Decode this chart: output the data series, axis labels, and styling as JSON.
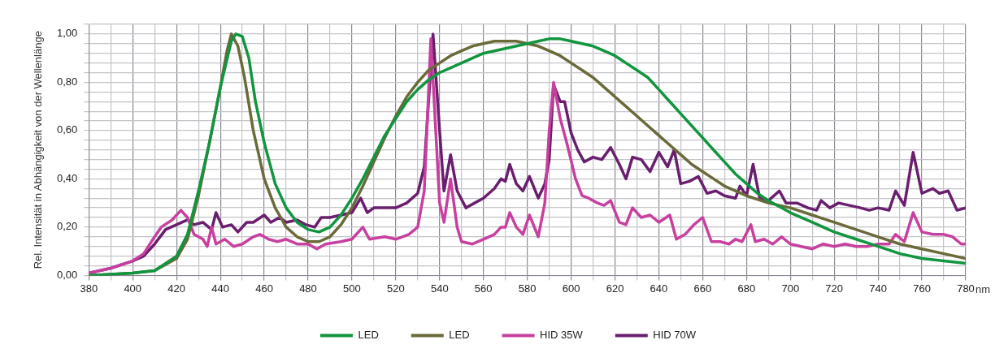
{
  "chart_data": {
    "type": "line",
    "ylabel": "Rel. Intensität in Abhängigkeit von der Wellenlänge",
    "xlabel": "nm",
    "xlim": [
      380,
      780
    ],
    "ylim": [
      0,
      1.04
    ],
    "xticks": [
      380,
      {
        "value": 390,
        "label": null
      },
      400,
      {
        "value": 410,
        "label": null
      },
      420,
      {
        "value": 430,
        "label": null
      },
      440,
      {
        "value": 450,
        "label": null
      },
      460,
      {
        "value": 470,
        "label": null
      },
      480,
      {
        "value": 490,
        "label": null
      },
      500,
      {
        "value": 510,
        "label": null
      },
      520,
      {
        "value": 530,
        "label": null
      },
      540,
      {
        "value": 550,
        "label": null
      },
      560,
      {
        "value": 570,
        "label": null
      },
      580,
      {
        "value": 590,
        "label": null
      },
      600,
      {
        "value": 610,
        "label": null
      },
      620,
      {
        "value": 630,
        "label": null
      },
      640,
      {
        "value": 650,
        "label": null
      },
      660,
      {
        "value": 670,
        "label": null
      },
      680,
      {
        "value": 690,
        "label": null
      },
      700,
      {
        "value": 710,
        "label": null
      },
      720,
      {
        "value": 730,
        "label": null
      },
      740,
      {
        "value": 750,
        "label": null
      },
      760,
      {
        "value": 770,
        "label": null
      },
      780
    ],
    "yticks": [
      {
        "value": 0,
        "label": "0,00"
      },
      {
        "value": 0.04,
        "label": null
      },
      {
        "value": 0.08,
        "label": null
      },
      {
        "value": 0.12,
        "label": null
      },
      {
        "value": 0.16,
        "label": null
      },
      {
        "value": 0.2,
        "label": "0,20"
      },
      {
        "value": 0.24,
        "label": null
      },
      {
        "value": 0.28,
        "label": null
      },
      {
        "value": 0.32,
        "label": null
      },
      {
        "value": 0.36,
        "label": null
      },
      {
        "value": 0.4,
        "label": "0,40"
      },
      {
        "value": 0.44,
        "label": null
      },
      {
        "value": 0.48,
        "label": null
      },
      {
        "value": 0.52,
        "label": null
      },
      {
        "value": 0.56,
        "label": null
      },
      {
        "value": 0.6,
        "label": "0,60"
      },
      {
        "value": 0.64,
        "label": null
      },
      {
        "value": 0.68,
        "label": null
      },
      {
        "value": 0.72,
        "label": null
      },
      {
        "value": 0.76,
        "label": null
      },
      {
        "value": 0.8,
        "label": "0,80"
      },
      {
        "value": 0.84,
        "label": null
      },
      {
        "value": 0.88,
        "label": null
      },
      {
        "value": 0.92,
        "label": null
      },
      {
        "value": 0.96,
        "label": null
      },
      {
        "value": 1,
        "label": "1,00"
      },
      {
        "value": 1.04,
        "label": null
      }
    ],
    "grid": true,
    "legend": "bottom",
    "marker": "none",
    "line_style": "solid",
    "series": [
      {
        "name": "LED",
        "color": "#12953f",
        "x": [
          380,
          400,
          410,
          420,
          425,
          430,
          435,
          440,
          445,
          447,
          450,
          453,
          456,
          460,
          465,
          470,
          475,
          480,
          485,
          490,
          495,
          500,
          505,
          510,
          515,
          520,
          525,
          530,
          535,
          540,
          545,
          550,
          555,
          560,
          565,
          570,
          575,
          580,
          585,
          590,
          595,
          600,
          605,
          610,
          615,
          620,
          625,
          630,
          635,
          640,
          645,
          650,
          655,
          660,
          665,
          670,
          675,
          680,
          685,
          690,
          700,
          710,
          720,
          730,
          740,
          750,
          760,
          770,
          780
        ],
        "values": [
          0.0,
          0.01,
          0.02,
          0.08,
          0.17,
          0.35,
          0.55,
          0.78,
          0.97,
          1.0,
          0.99,
          0.9,
          0.72,
          0.55,
          0.38,
          0.28,
          0.22,
          0.19,
          0.18,
          0.2,
          0.25,
          0.32,
          0.4,
          0.49,
          0.58,
          0.65,
          0.72,
          0.77,
          0.81,
          0.84,
          0.86,
          0.88,
          0.9,
          0.92,
          0.93,
          0.94,
          0.95,
          0.96,
          0.97,
          0.98,
          0.98,
          0.97,
          0.96,
          0.95,
          0.93,
          0.91,
          0.88,
          0.85,
          0.82,
          0.77,
          0.72,
          0.67,
          0.62,
          0.57,
          0.52,
          0.47,
          0.42,
          0.38,
          0.34,
          0.31,
          0.26,
          0.22,
          0.18,
          0.15,
          0.12,
          0.09,
          0.07,
          0.06,
          0.05
        ]
      },
      {
        "name": "LED",
        "color": "#6b6a3a",
        "x": [
          380,
          400,
          410,
          420,
          425,
          430,
          435,
          440,
          443,
          445,
          448,
          451,
          455,
          460,
          465,
          470,
          475,
          480,
          485,
          490,
          495,
          500,
          505,
          510,
          515,
          520,
          525,
          530,
          535,
          540,
          545,
          550,
          555,
          560,
          565,
          570,
          575,
          580,
          585,
          590,
          595,
          600,
          605,
          610,
          615,
          620,
          625,
          630,
          635,
          640,
          645,
          650,
          655,
          660,
          665,
          670,
          680,
          690,
          700,
          710,
          720,
          730,
          740,
          750,
          760,
          770,
          780
        ],
        "values": [
          0.0,
          0.01,
          0.02,
          0.07,
          0.15,
          0.33,
          0.55,
          0.78,
          0.93,
          1.0,
          0.95,
          0.82,
          0.6,
          0.4,
          0.28,
          0.2,
          0.16,
          0.14,
          0.14,
          0.16,
          0.21,
          0.28,
          0.37,
          0.47,
          0.57,
          0.66,
          0.74,
          0.8,
          0.85,
          0.88,
          0.91,
          0.93,
          0.95,
          0.96,
          0.97,
          0.97,
          0.97,
          0.96,
          0.95,
          0.93,
          0.91,
          0.88,
          0.85,
          0.82,
          0.78,
          0.74,
          0.7,
          0.66,
          0.62,
          0.58,
          0.54,
          0.5,
          0.46,
          0.43,
          0.4,
          0.37,
          0.33,
          0.3,
          0.28,
          0.25,
          0.22,
          0.19,
          0.16,
          0.13,
          0.11,
          0.09,
          0.07
        ]
      },
      {
        "name": "HID 35W",
        "color": "#c8409f",
        "x": [
          380,
          390,
          400,
          405,
          410,
          413,
          418,
          422,
          425,
          428,
          432,
          434,
          436,
          438,
          442,
          446,
          450,
          455,
          458,
          462,
          466,
          470,
          475,
          480,
          484,
          488,
          495,
          500,
          505,
          508,
          515,
          520,
          526,
          530,
          533,
          536,
          540,
          542,
          545,
          548,
          550,
          555,
          560,
          565,
          568,
          570,
          572,
          575,
          578,
          581,
          585,
          588,
          590,
          592,
          595,
          598,
          602,
          605,
          608,
          612,
          615,
          618,
          622,
          625,
          628,
          632,
          636,
          640,
          645,
          648,
          652,
          656,
          660,
          664,
          668,
          672,
          675,
          678,
          682,
          684,
          688,
          692,
          696,
          700,
          705,
          710,
          715,
          720,
          725,
          730,
          735,
          740,
          745,
          748,
          752,
          756,
          760,
          765,
          770,
          774,
          778,
          780
        ],
        "values": [
          0.01,
          0.03,
          0.06,
          0.09,
          0.16,
          0.2,
          0.23,
          0.27,
          0.24,
          0.17,
          0.15,
          0.12,
          0.2,
          0.13,
          0.15,
          0.12,
          0.13,
          0.16,
          0.17,
          0.15,
          0.14,
          0.15,
          0.13,
          0.13,
          0.11,
          0.13,
          0.14,
          0.15,
          0.2,
          0.15,
          0.16,
          0.15,
          0.17,
          0.2,
          0.35,
          0.98,
          0.3,
          0.22,
          0.4,
          0.2,
          0.14,
          0.13,
          0.15,
          0.17,
          0.2,
          0.2,
          0.26,
          0.2,
          0.17,
          0.25,
          0.16,
          0.3,
          0.6,
          0.8,
          0.65,
          0.55,
          0.4,
          0.33,
          0.32,
          0.3,
          0.29,
          0.31,
          0.22,
          0.21,
          0.28,
          0.24,
          0.25,
          0.22,
          0.25,
          0.15,
          0.17,
          0.21,
          0.24,
          0.14,
          0.14,
          0.13,
          0.15,
          0.14,
          0.21,
          0.14,
          0.15,
          0.13,
          0.16,
          0.13,
          0.12,
          0.11,
          0.13,
          0.12,
          0.13,
          0.12,
          0.12,
          0.13,
          0.13,
          0.17,
          0.14,
          0.26,
          0.18,
          0.17,
          0.17,
          0.16,
          0.13,
          0.13
        ]
      },
      {
        "name": "HID 70W",
        "color": "#6a1f6e",
        "x": [
          380,
          390,
          400,
          405,
          410,
          415,
          420,
          425,
          428,
          432,
          436,
          438,
          441,
          445,
          448,
          452,
          455,
          460,
          463,
          467,
          470,
          475,
          479,
          483,
          486,
          490,
          495,
          500,
          504,
          507,
          510,
          515,
          520,
          525,
          530,
          533,
          537,
          540,
          542,
          545,
          548,
          552,
          556,
          560,
          565,
          568,
          570,
          572,
          575,
          578,
          581,
          585,
          588,
          590,
          592,
          595,
          597,
          600,
          603,
          606,
          610,
          614,
          618,
          622,
          625,
          628,
          632,
          636,
          640,
          644,
          647,
          650,
          654,
          658,
          662,
          666,
          670,
          675,
          677,
          680,
          683,
          686,
          690,
          695,
          698,
          703,
          708,
          712,
          714,
          718,
          722,
          727,
          732,
          736,
          740,
          745,
          748,
          752,
          756,
          760,
          765,
          768,
          772,
          776,
          780
        ],
        "values": [
          0.01,
          0.03,
          0.06,
          0.08,
          0.13,
          0.19,
          0.21,
          0.23,
          0.21,
          0.22,
          0.19,
          0.26,
          0.2,
          0.21,
          0.18,
          0.22,
          0.22,
          0.25,
          0.22,
          0.24,
          0.22,
          0.23,
          0.21,
          0.2,
          0.24,
          0.24,
          0.25,
          0.26,
          0.32,
          0.26,
          0.28,
          0.28,
          0.28,
          0.3,
          0.34,
          0.45,
          1.0,
          0.6,
          0.35,
          0.5,
          0.35,
          0.28,
          0.3,
          0.32,
          0.36,
          0.4,
          0.39,
          0.46,
          0.38,
          0.35,
          0.41,
          0.32,
          0.38,
          0.48,
          0.79,
          0.72,
          0.72,
          0.59,
          0.52,
          0.47,
          0.49,
          0.48,
          0.53,
          0.46,
          0.4,
          0.49,
          0.48,
          0.43,
          0.51,
          0.45,
          0.52,
          0.38,
          0.39,
          0.41,
          0.34,
          0.35,
          0.33,
          0.32,
          0.37,
          0.33,
          0.46,
          0.32,
          0.31,
          0.35,
          0.3,
          0.3,
          0.28,
          0.27,
          0.31,
          0.28,
          0.3,
          0.29,
          0.28,
          0.27,
          0.28,
          0.27,
          0.35,
          0.29,
          0.51,
          0.34,
          0.36,
          0.34,
          0.35,
          0.27,
          0.28
        ]
      }
    ]
  }
}
